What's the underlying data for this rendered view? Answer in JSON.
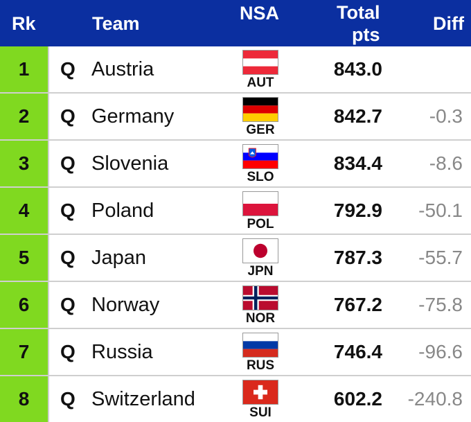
{
  "header": {
    "rk": "Rk",
    "team": "Team",
    "nsa": "NSA",
    "total_line1": "Total",
    "total_line2": "pts",
    "diff": "Diff"
  },
  "rows": [
    {
      "rank": "1",
      "q": "Q",
      "team": "Austria",
      "code": "AUT",
      "total": "843.0",
      "diff": "",
      "flag": "austria-flag-icon"
    },
    {
      "rank": "2",
      "q": "Q",
      "team": "Germany",
      "code": "GER",
      "total": "842.7",
      "diff": "-0.3",
      "flag": "germany-flag-icon"
    },
    {
      "rank": "3",
      "q": "Q",
      "team": "Slovenia",
      "code": "SLO",
      "total": "834.4",
      "diff": "-8.6",
      "flag": "slovenia-flag-icon"
    },
    {
      "rank": "4",
      "q": "Q",
      "team": "Poland",
      "code": "POL",
      "total": "792.9",
      "diff": "-50.1",
      "flag": "poland-flag-icon"
    },
    {
      "rank": "5",
      "q": "Q",
      "team": "Japan",
      "code": "JPN",
      "total": "787.3",
      "diff": "-55.7",
      "flag": "japan-flag-icon"
    },
    {
      "rank": "6",
      "q": "Q",
      "team": "Norway",
      "code": "NOR",
      "total": "767.2",
      "diff": "-75.8",
      "flag": "norway-flag-icon"
    },
    {
      "rank": "7",
      "q": "Q",
      "team": "Russia",
      "code": "RUS",
      "total": "746.4",
      "diff": "-96.6",
      "flag": "russia-flag-icon"
    },
    {
      "rank": "8",
      "q": "Q",
      "team": "Switzerland",
      "code": "SUI",
      "total": "602.2",
      "diff": "-240.8",
      "flag": "switzerland-flag-icon"
    }
  ],
  "colors": {
    "header_bg": "#0b2fa0",
    "rank_bg": "#80d920",
    "diff_text": "#888888"
  }
}
